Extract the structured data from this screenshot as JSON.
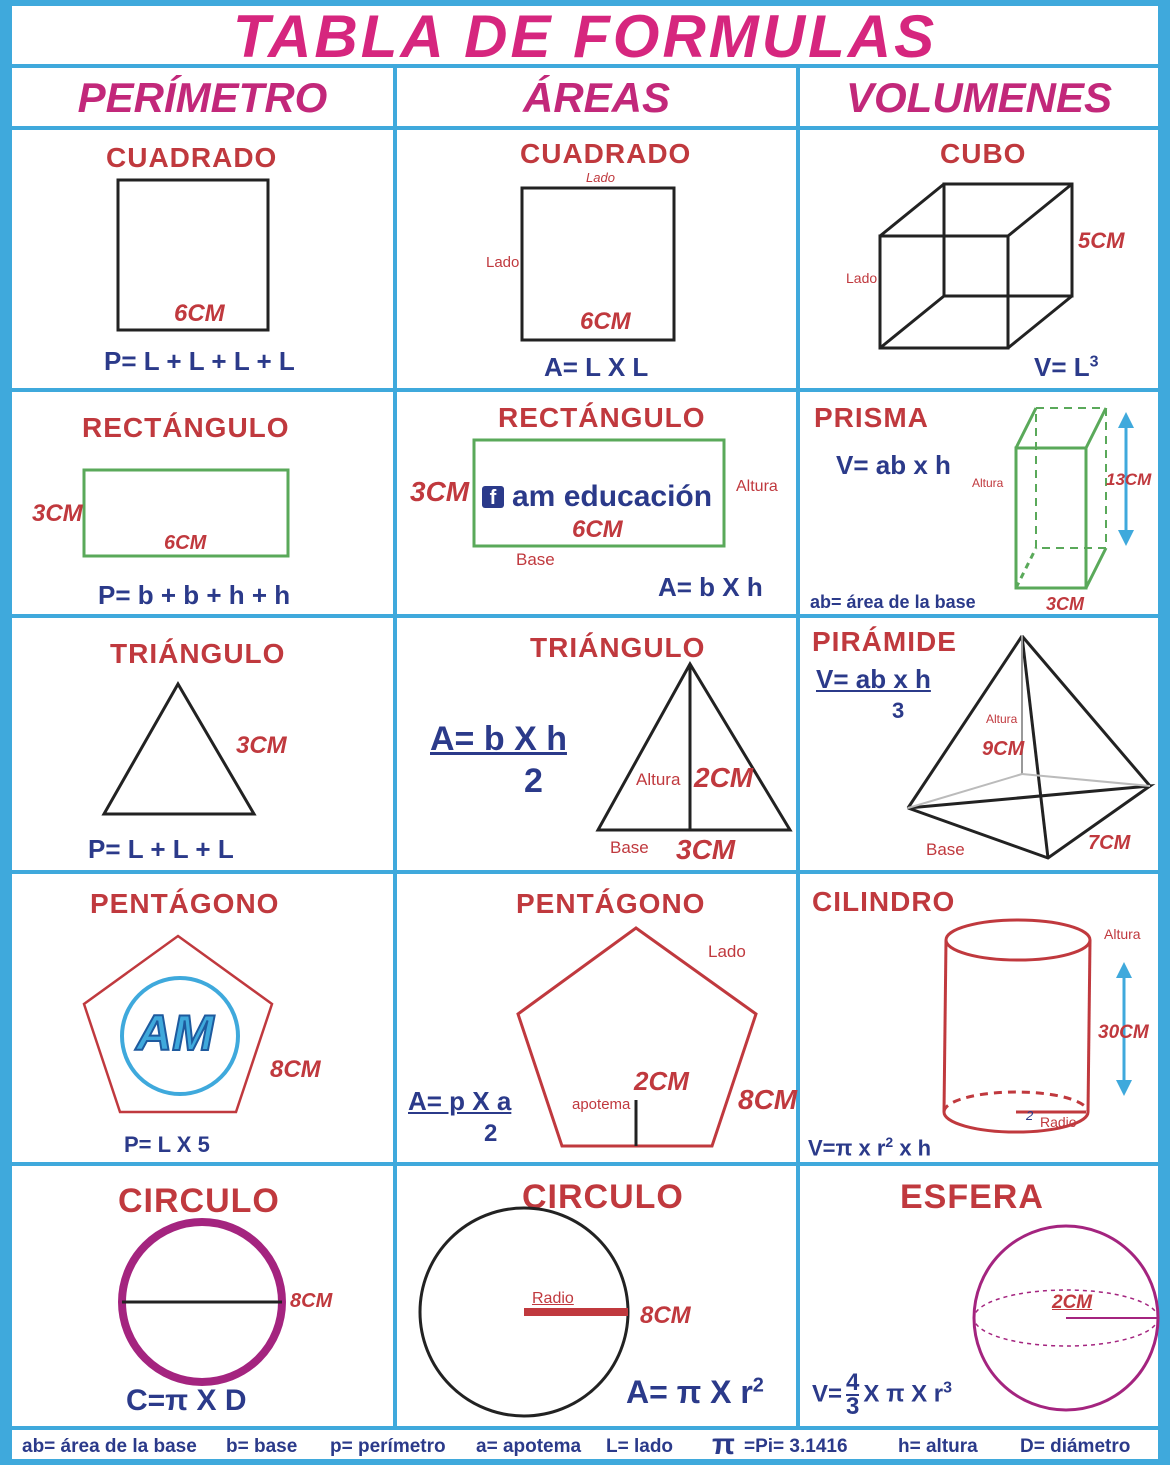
{
  "title": "TABLA DE FORMULAS",
  "columns": [
    "PERÍMETRO",
    "ÁREAS",
    "VOLUMENES"
  ],
  "perimetro": {
    "cuadrado": {
      "label": "CUADRADO",
      "measure": "6CM",
      "formula": "P= L + L + L + L"
    },
    "rectangulo": {
      "label": "RECTÁNGULO",
      "height": "3CM",
      "base": "6CM",
      "formula": "P= b + b + h + h"
    },
    "triangulo": {
      "label": "TRIÁNGULO",
      "side": "3CM",
      "formula": "P= L + L + L"
    },
    "pentagono": {
      "label": "PENTÁGONO",
      "side": "8CM",
      "logo": "AM",
      "formula": "P= L X 5"
    },
    "circulo": {
      "label": "CIRCULO",
      "diameter": "8CM",
      "formula": "C=π X D"
    }
  },
  "areas": {
    "cuadrado": {
      "label": "CUADRADO",
      "lado_top": "Lado",
      "lado_left": "Lado",
      "measure": "6CM",
      "formula": "A= L X L"
    },
    "rectangulo": {
      "label": "RECTÁNGULO",
      "height": "3CM",
      "watermark": "am educación",
      "watermark_icon": "f",
      "base_measure": "6CM",
      "altura": "Altura",
      "base": "Base",
      "formula": "A= b X h"
    },
    "triangulo": {
      "label": "TRIÁNGULO",
      "formula_num": "A= b X h",
      "formula_den": "2",
      "altura": "Altura",
      "height": "2CM",
      "base": "Base",
      "base_measure": "3CM"
    },
    "pentagono": {
      "label": "PENTÁGONO",
      "lado": "Lado",
      "apotema_measure": "2CM",
      "apotema": "apotema",
      "side": "8CM",
      "formula_num": "A= p X a",
      "formula_den": "2"
    },
    "circulo": {
      "label": "CIRCULO",
      "radio": "Radio",
      "measure": "8CM",
      "formula": "A= π X r",
      "exp": "2"
    }
  },
  "volumenes": {
    "cubo": {
      "label": "CUBO",
      "lado": "Lado",
      "measure": "5CM",
      "formula": "V= L",
      "exp": "3"
    },
    "prisma": {
      "label": "PRISMA",
      "formula": "V= ab x h",
      "altura": "Altura",
      "height": "13CM",
      "base_note": "ab= área de la base",
      "base_measure": "3CM"
    },
    "piramide": {
      "label": "PIRÁMIDE",
      "formula_num": "V= ab x h",
      "formula_den": "3",
      "altura": "Altura",
      "height": "9CM",
      "base": "Base",
      "base_measure": "7CM"
    },
    "cilindro": {
      "label": "CILINDRO",
      "altura": "Altura",
      "height": "30CM",
      "radio_num": "2",
      "radio": "Radio",
      "formula": "V=π x r",
      "exp": "2",
      "formula_tail": "x h"
    },
    "esfera": {
      "label": "ESFERA",
      "radius": "2CM",
      "formula_a": "V=",
      "frac_num": "4",
      "frac_den": "3",
      "formula_b": "X π X r",
      "exp": "3"
    }
  },
  "legend": [
    "ab= área de la base",
    "b= base",
    "p= perímetro",
    "a= apotema",
    "L= lado",
    "π",
    "=Pi= 3.1416",
    "h= altura",
    "D= diámetro"
  ],
  "colors": {
    "grid": "#3fa9dc",
    "title": "#d6267e",
    "label": "#c0393e",
    "formula": "#2b3a8a",
    "green": "#5aa95a",
    "purple": "#a4247f"
  }
}
